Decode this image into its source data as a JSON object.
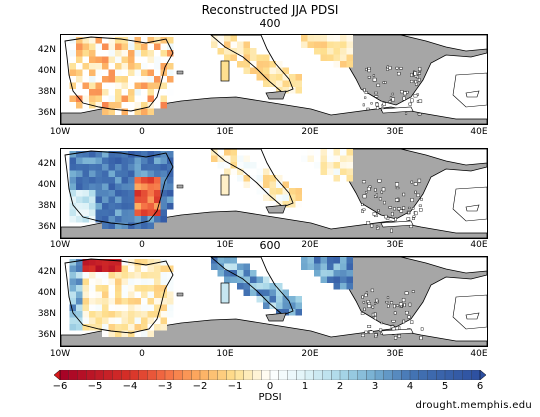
{
  "map": {
    "title": "Reconstructed JJA PDSI",
    "panels": [
      {
        "label": "400",
        "mode": "dry"
      },
      {
        "label": "",
        "mode": "wet"
      },
      {
        "label": "600",
        "mode": "mixed"
      }
    ],
    "lat_labels": [
      "42N",
      "40N",
      "38N",
      "36N"
    ],
    "lon_labels": [
      "10W",
      "0",
      "10E",
      "20E",
      "30E",
      "40E"
    ],
    "colorbar": {
      "ticks": [
        "−6",
        "−5",
        "−4",
        "−3",
        "−2",
        "−1",
        "0",
        "1",
        "2",
        "3",
        "4",
        "5",
        "6"
      ],
      "label": "PDSI",
      "dry_color": "#d7191c",
      "wet_color": "#2c4fa0",
      "land_color": "#a6a6a6"
    },
    "credit": "drought.memphis.edu"
  }
}
